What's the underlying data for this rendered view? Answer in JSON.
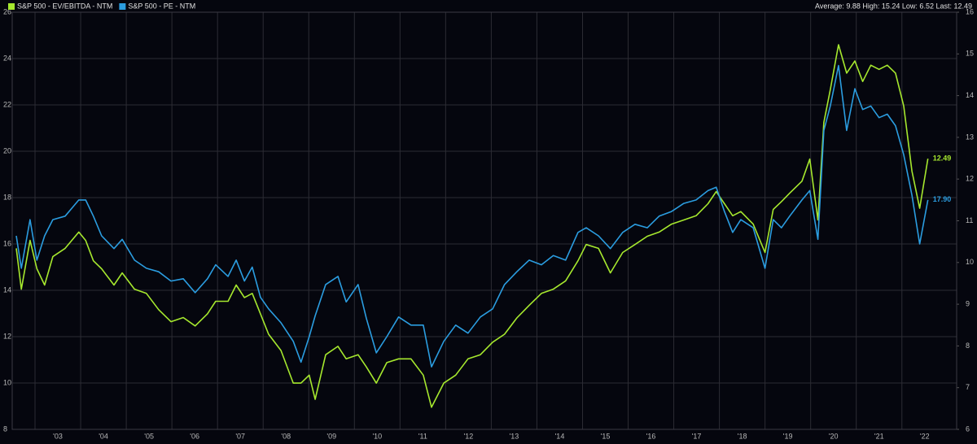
{
  "chart_data": {
    "type": "line",
    "stats": "Average: 9.88 High: 15.24 Low: 6.52 Last: 12.49",
    "x": [
      2002.59,
      2002.7,
      2002.89,
      2003.04,
      2003.21,
      2003.39,
      2003.66,
      2003.96,
      2004.11,
      2004.28,
      2004.46,
      2004.73,
      2004.91,
      2005.18,
      2005.44,
      2005.71,
      2005.98,
      2006.25,
      2006.51,
      2006.78,
      2006.96,
      2007.23,
      2007.41,
      2007.59,
      2007.76,
      2007.94,
      2008.12,
      2008.39,
      2008.66,
      2008.83,
      2009.01,
      2009.14,
      2009.37,
      2009.64,
      2009.82,
      2010.08,
      2010.26,
      2010.48,
      2010.71,
      2010.97,
      2011.24,
      2011.51,
      2011.69,
      2011.96,
      2012.22,
      2012.49,
      2012.76,
      2013.03,
      2013.29,
      2013.56,
      2013.83,
      2014.1,
      2014.36,
      2014.63,
      2014.9,
      2015.08,
      2015.35,
      2015.61,
      2015.88,
      2016.15,
      2016.42,
      2016.68,
      2016.95,
      2017.22,
      2017.49,
      2017.75,
      2017.93,
      2018.11,
      2018.29,
      2018.47,
      2018.74,
      2019.0,
      2019.18,
      2019.36,
      2019.54,
      2019.81,
      2019.98,
      2020.16,
      2020.29,
      2020.43,
      2020.61,
      2020.79,
      2020.97,
      2021.14,
      2021.32,
      2021.5,
      2021.68,
      2021.86,
      2022.04,
      2022.22,
      2022.39,
      2022.57
    ],
    "series": [
      {
        "name": "S&P 500 - EV/EBITDA - NTM",
        "color": "#a6e82e",
        "axis": "y2",
        "values": [
          10.34,
          9.36,
          10.53,
          9.85,
          9.46,
          10.14,
          10.34,
          10.73,
          10.53,
          10.04,
          9.85,
          9.46,
          9.75,
          9.36,
          9.26,
          8.87,
          8.58,
          8.68,
          8.48,
          8.77,
          9.07,
          9.07,
          9.46,
          9.16,
          9.26,
          8.77,
          8.28,
          7.89,
          7.11,
          7.11,
          7.3,
          6.72,
          7.79,
          7.99,
          7.69,
          7.79,
          7.5,
          7.11,
          7.6,
          7.69,
          7.69,
          7.3,
          6.53,
          7.11,
          7.3,
          7.69,
          7.79,
          8.09,
          8.28,
          8.67,
          8.97,
          9.26,
          9.36,
          9.56,
          10.04,
          10.43,
          10.34,
          9.75,
          10.24,
          10.43,
          10.63,
          10.73,
          10.92,
          11.02,
          11.12,
          11.41,
          11.7,
          11.41,
          11.12,
          11.22,
          10.92,
          10.24,
          11.27,
          11.46,
          11.66,
          11.95,
          12.48,
          11.02,
          13.36,
          14.14,
          15.22,
          14.54,
          14.83,
          14.34,
          14.73,
          14.63,
          14.73,
          14.54,
          13.75,
          12.19,
          11.3,
          12.49
        ]
      },
      {
        "name": "S&P 500 - PE - NTM",
        "color": "#2b9de0",
        "axis": "y",
        "values": [
          16.35,
          14.95,
          17.05,
          15.3,
          16.35,
          17.05,
          17.2,
          17.9,
          17.9,
          17.2,
          16.35,
          15.8,
          16.2,
          15.3,
          14.95,
          14.8,
          14.4,
          14.5,
          13.9,
          14.5,
          15.1,
          14.6,
          15.3,
          14.4,
          15.0,
          13.7,
          13.2,
          12.6,
          11.8,
          10.9,
          12.0,
          12.9,
          14.25,
          14.6,
          13.5,
          14.25,
          12.8,
          11.3,
          12.0,
          12.85,
          12.5,
          12.5,
          10.7,
          11.8,
          12.5,
          12.15,
          12.85,
          13.2,
          14.25,
          14.8,
          15.3,
          15.1,
          15.5,
          15.3,
          16.5,
          16.7,
          16.35,
          15.8,
          16.5,
          16.85,
          16.7,
          17.2,
          17.4,
          17.75,
          17.9,
          18.3,
          18.45,
          17.4,
          16.5,
          17.05,
          16.7,
          14.95,
          17.05,
          16.7,
          17.2,
          17.9,
          18.3,
          16.2,
          20.9,
          21.95,
          23.7,
          20.9,
          22.7,
          21.8,
          21.95,
          21.45,
          21.6,
          21.1,
          19.85,
          18.1,
          16.0,
          17.9
        ],
        "value_labels": [
          null,
          null,
          null,
          null,
          null,
          null,
          null,
          null,
          null,
          null,
          null,
          null,
          null,
          null,
          null,
          null,
          null,
          null,
          null,
          null,
          null,
          null,
          null,
          null,
          null,
          null,
          null,
          null,
          null,
          null,
          null,
          null,
          null,
          null,
          null,
          null,
          null,
          null,
          null,
          null,
          null,
          null,
          null,
          null,
          null,
          null,
          null,
          null,
          null,
          null,
          null,
          null,
          null,
          null,
          null,
          null,
          null,
          null,
          null,
          null,
          null,
          null,
          null,
          null,
          null,
          null,
          null,
          null,
          null,
          null,
          null,
          null,
          null,
          null,
          null,
          null,
          null,
          null,
          null,
          null,
          null,
          null,
          null,
          null,
          null,
          null,
          null,
          null,
          null,
          null,
          null,
          "17.90"
        ]
      }
    ],
    "xlim": [
      2002.5,
      2023.2
    ],
    "xticks": [
      {
        "value": 2003,
        "label": "'03"
      },
      {
        "value": 2004,
        "label": "'04"
      },
      {
        "value": 2005,
        "label": "'05"
      },
      {
        "value": 2006,
        "label": "'06"
      },
      {
        "value": 2007,
        "label": "'07"
      },
      {
        "value": 2008,
        "label": "'08"
      },
      {
        "value": 2009,
        "label": "'09"
      },
      {
        "value": 2010,
        "label": "'10"
      },
      {
        "value": 2011,
        "label": "'11"
      },
      {
        "value": 2012,
        "label": "'12"
      },
      {
        "value": 2013,
        "label": "'13"
      },
      {
        "value": 2014,
        "label": "'14"
      },
      {
        "value": 2015,
        "label": "'15"
      },
      {
        "value": 2016,
        "label": "'16"
      },
      {
        "value": 2017,
        "label": "'17"
      },
      {
        "value": 2018,
        "label": "'18"
      },
      {
        "value": 2019,
        "label": "'19"
      },
      {
        "value": 2020,
        "label": "'20"
      },
      {
        "value": 2021,
        "label": "'21"
      },
      {
        "value": 2022,
        "label": "'22"
      }
    ],
    "ylim": [
      8,
      26
    ],
    "yticks": [
      8,
      10,
      12,
      14,
      16,
      18,
      20,
      22,
      24,
      26
    ],
    "y2lim": [
      6,
      16
    ],
    "y2ticks": [
      6,
      7,
      8,
      9,
      10,
      11,
      12,
      13,
      14,
      15,
      16
    ],
    "grid": true,
    "legend": "top-left"
  }
}
